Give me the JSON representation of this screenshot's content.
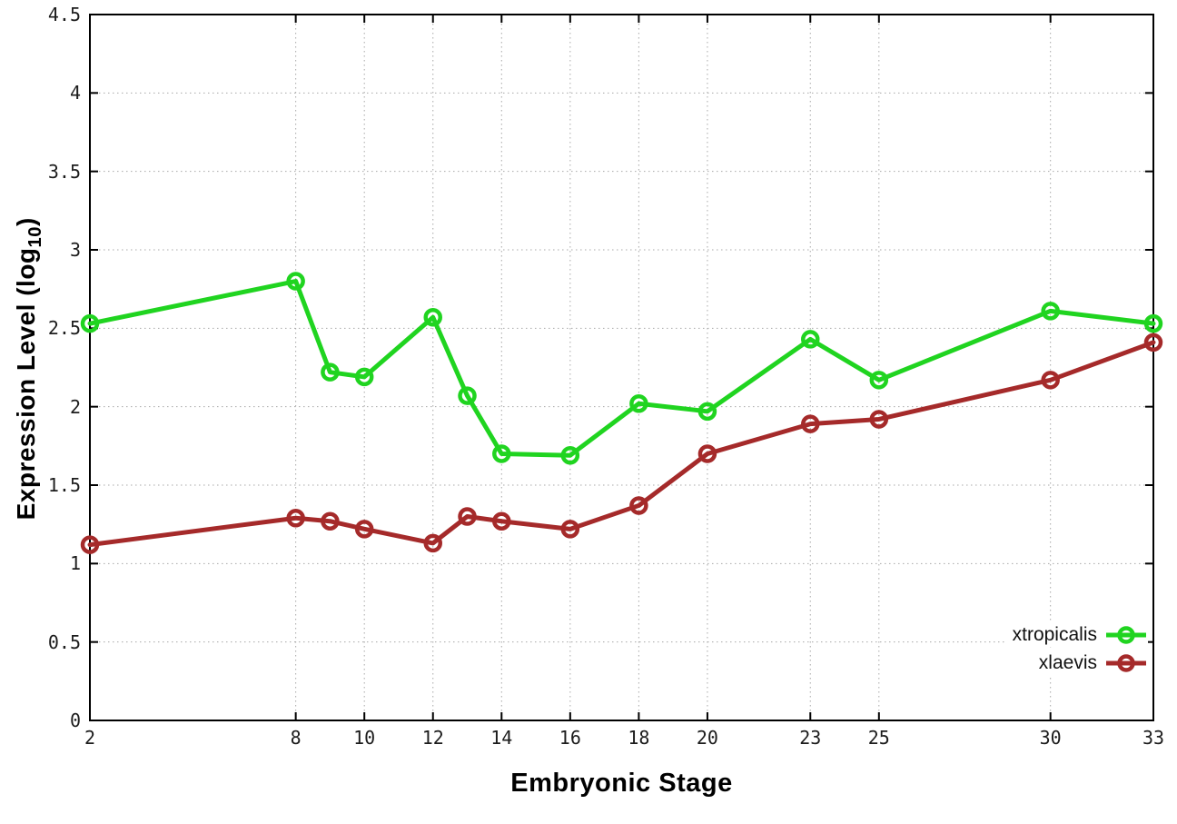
{
  "chart_data": {
    "type": "line",
    "title": "",
    "xlabel": "Embryonic Stage",
    "ylabel_main": "Expression Level (log",
    "ylabel_sub": "10",
    "ylabel_close": ")",
    "xlim": [
      2,
      33
    ],
    "ylim": [
      0,
      4.5
    ],
    "x_ticks": [
      2,
      8,
      10,
      12,
      14,
      16,
      18,
      20,
      23,
      25,
      30,
      33
    ],
    "y_ticks": [
      0,
      0.5,
      1,
      1.5,
      2,
      2.5,
      3,
      3.5,
      4,
      4.5
    ],
    "grid": true,
    "legend_position": "bottom-right",
    "marker_style": "open-circle",
    "background_color": "#ffffff",
    "axis_color": "#000000",
    "grid_color": "#a8a8a8",
    "x": [
      2,
      8,
      9,
      10,
      12,
      13,
      14,
      16,
      18,
      20,
      23,
      25,
      30,
      33
    ],
    "series": [
      {
        "name": "xtropicalis",
        "color": "#20d420",
        "values": [
          2.53,
          2.8,
          2.22,
          2.19,
          2.57,
          2.07,
          1.7,
          1.69,
          2.02,
          1.97,
          2.43,
          2.17,
          2.61,
          2.53
        ]
      },
      {
        "name": "xlaevis",
        "color": "#a52a2a",
        "values": [
          1.12,
          1.29,
          1.27,
          1.22,
          1.13,
          1.3,
          1.27,
          1.22,
          1.37,
          1.7,
          1.89,
          1.92,
          2.17,
          2.41
        ]
      }
    ]
  }
}
